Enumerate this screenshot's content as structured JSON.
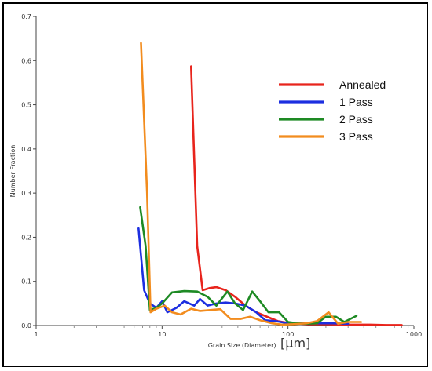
{
  "chart_data": {
    "type": "line",
    "title": "",
    "xlabel": "Grain Size (Diameter)",
    "xunit": "[μm]",
    "ylabel": "Number Fraction",
    "xscale": "log",
    "xlim": [
      1,
      1000
    ],
    "ylim": [
      0,
      0.7
    ],
    "xticks": [
      "1",
      "10",
      "100",
      "1000"
    ],
    "yticks": [
      "0.0",
      "0.1",
      "0.2",
      "0.3",
      "0.4",
      "0.5",
      "0.6",
      "0.7"
    ],
    "grid": false,
    "legend_position": "top-right",
    "series": [
      {
        "name": "Annealed",
        "color": "#e8241c",
        "points": [
          [
            17.0,
            0.587
          ],
          [
            19.0,
            0.18
          ],
          [
            21.0,
            0.08
          ],
          [
            24.0,
            0.085
          ],
          [
            27.0,
            0.087
          ],
          [
            32.0,
            0.08
          ],
          [
            38.0,
            0.065
          ],
          [
            46.0,
            0.045
          ],
          [
            56.0,
            0.03
          ],
          [
            68.0,
            0.02
          ],
          [
            83.0,
            0.01
          ],
          [
            100.0,
            0.006
          ],
          [
            125.0,
            0.004
          ],
          [
            150.0,
            0.003
          ],
          [
            200.0,
            0.003
          ],
          [
            270.0,
            0.002
          ],
          [
            350.0,
            0.002
          ],
          [
            450.0,
            0.002
          ],
          [
            600.0,
            0.001
          ],
          [
            800.0,
            0.001
          ]
        ]
      },
      {
        "name": "1 Pass",
        "color": "#1c2ee0",
        "points": [
          [
            6.5,
            0.22
          ],
          [
            7.2,
            0.08
          ],
          [
            8.0,
            0.05
          ],
          [
            9.0,
            0.04
          ],
          [
            10.0,
            0.055
          ],
          [
            11.0,
            0.03
          ],
          [
            13.0,
            0.04
          ],
          [
            15.0,
            0.055
          ],
          [
            18.0,
            0.045
          ],
          [
            20.0,
            0.06
          ],
          [
            23.0,
            0.045
          ],
          [
            27.0,
            0.05
          ],
          [
            32.0,
            0.052
          ],
          [
            38.0,
            0.05
          ],
          [
            46.0,
            0.045
          ],
          [
            56.0,
            0.03
          ],
          [
            66.0,
            0.012
          ],
          [
            80.0,
            0.01
          ],
          [
            100.0,
            0.005
          ],
          [
            130.0,
            0.005
          ],
          [
            170.0,
            0.005
          ],
          [
            230.0,
            0.005
          ],
          [
            300.0,
            0.004
          ]
        ]
      },
      {
        "name": "2 Pass",
        "color": "#1e8a24",
        "points": [
          [
            6.7,
            0.268
          ],
          [
            7.4,
            0.18
          ],
          [
            8.0,
            0.035
          ],
          [
            9.0,
            0.04
          ],
          [
            10.0,
            0.05
          ],
          [
            12.0,
            0.075
          ],
          [
            15.0,
            0.078
          ],
          [
            19.0,
            0.077
          ],
          [
            23.0,
            0.065
          ],
          [
            27.0,
            0.045
          ],
          [
            33.0,
            0.077
          ],
          [
            38.0,
            0.05
          ],
          [
            44.0,
            0.035
          ],
          [
            52.0,
            0.077
          ],
          [
            60.0,
            0.055
          ],
          [
            70.0,
            0.03
          ],
          [
            85.0,
            0.03
          ],
          [
            100.0,
            0.008
          ],
          [
            120.0,
            0.005
          ],
          [
            140.0,
            0.004
          ],
          [
            170.0,
            0.005
          ],
          [
            200.0,
            0.02
          ],
          [
            240.0,
            0.02
          ],
          [
            280.0,
            0.008
          ],
          [
            350.0,
            0.022
          ]
        ]
      },
      {
        "name": "3 Pass",
        "color": "#f28c1e",
        "points": [
          [
            6.8,
            0.64
          ],
          [
            7.6,
            0.3
          ],
          [
            8.1,
            0.03
          ],
          [
            9.0,
            0.038
          ],
          [
            10.5,
            0.045
          ],
          [
            12.0,
            0.03
          ],
          [
            14.0,
            0.025
          ],
          [
            17.0,
            0.038
          ],
          [
            20.0,
            0.033
          ],
          [
            24.0,
            0.035
          ],
          [
            29.0,
            0.037
          ],
          [
            35.0,
            0.015
          ],
          [
            42.0,
            0.015
          ],
          [
            50.0,
            0.02
          ],
          [
            60.0,
            0.012
          ],
          [
            75.0,
            0.005
          ],
          [
            90.0,
            0.002
          ],
          [
            110.0,
            0.003
          ],
          [
            140.0,
            0.005
          ],
          [
            170.0,
            0.01
          ],
          [
            210.0,
            0.03
          ],
          [
            250.0,
            0.004
          ],
          [
            300.0,
            0.008
          ],
          [
            380.0,
            0.008
          ]
        ]
      }
    ]
  }
}
